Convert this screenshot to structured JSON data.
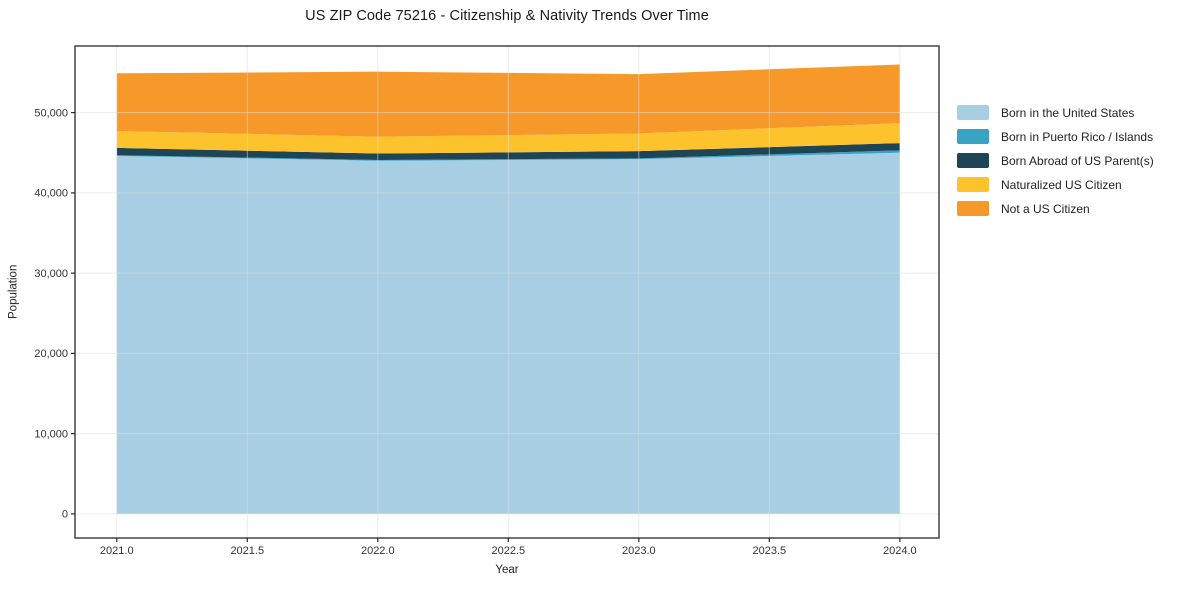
{
  "chart": {
    "title": "US ZIP Code 75216 - Citizenship & Nativity Trends Over Time",
    "xlabel": "Year",
    "ylabel": "Population"
  },
  "chart_data": {
    "type": "area",
    "stacked": true,
    "title": "US ZIP Code 75216 - Citizenship & Nativity Trends Over Time",
    "xlabel": "Year",
    "ylabel": "Population",
    "x": [
      2021,
      2022,
      2023,
      2024
    ],
    "series": [
      {
        "name": "Born in the United States",
        "color": "#a7cee3",
        "values": [
          44600,
          44000,
          44200,
          45000
        ]
      },
      {
        "name": "Born in Puerto Rico / Islands",
        "color": "#38a3c3",
        "values": [
          100,
          100,
          100,
          300
        ]
      },
      {
        "name": "Born Abroad of US Parent(s)",
        "color": "#1f4456",
        "values": [
          900,
          800,
          900,
          900
        ]
      },
      {
        "name": "Naturalized US Citizen",
        "color": "#fcc32d",
        "values": [
          2100,
          2100,
          2200,
          2500
        ]
      },
      {
        "name": "Not a US Citizen",
        "color": "#f7982a",
        "values": [
          7200,
          8100,
          7400,
          7300
        ]
      }
    ],
    "stack_totals": [
      54900,
      55100,
      54800,
      56000
    ],
    "x_ticks": [
      2021.0,
      2021.5,
      2022.0,
      2022.5,
      2023.0,
      2023.5,
      2024.0
    ],
    "x_tick_labels": [
      "2021.0",
      "2021.5",
      "2022.0",
      "2022.5",
      "2023.0",
      "2023.5",
      "2024.0"
    ],
    "y_ticks": [
      0,
      10000,
      20000,
      30000,
      40000,
      50000
    ],
    "y_tick_labels": [
      "0",
      "10,000",
      "20,000",
      "30,000",
      "40,000",
      "50,000"
    ],
    "xlim": [
      2020.84,
      2024.15
    ],
    "ylim": [
      -3000,
      58300
    ],
    "grid": true,
    "legend_position": "right"
  },
  "colors": {
    "grid": "#dedede",
    "spine": "#262626",
    "tick_label": "#333333",
    "title": "#1a1a1a",
    "background": "#ffffff"
  }
}
